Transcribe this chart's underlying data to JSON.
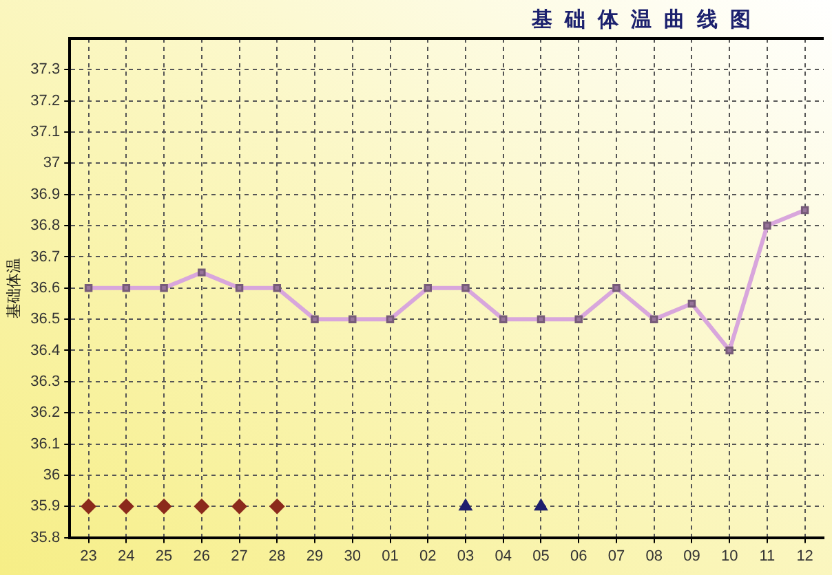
{
  "chart_data": {
    "type": "line",
    "title": "基础体温曲线图",
    "ylabel": "基础体温",
    "categories": [
      "23",
      "24",
      "25",
      "26",
      "27",
      "28",
      "29",
      "30",
      "01",
      "02",
      "03",
      "04",
      "05",
      "06",
      "07",
      "08",
      "09",
      "10",
      "11",
      "12"
    ],
    "series": [
      {
        "color": "#d8a6dc",
        "marker": "square",
        "values": [
          36.6,
          36.6,
          36.6,
          36.65,
          36.6,
          36.6,
          36.5,
          36.5,
          36.5,
          36.6,
          36.6,
          36.5,
          36.5,
          36.5,
          36.6,
          36.5,
          36.55,
          36.4,
          36.8,
          36.85
        ]
      },
      {
        "type": "scatter",
        "color": "#8b2a1c",
        "marker": "diamond",
        "values": [
          35.9,
          35.9,
          35.9,
          35.9,
          35.9,
          35.9,
          null,
          null,
          null,
          null,
          null,
          null,
          null,
          null,
          null,
          null,
          null,
          null,
          null,
          null
        ]
      },
      {
        "type": "scatter",
        "color": "#1e1e6e",
        "marker": "triangle",
        "values": [
          null,
          null,
          null,
          null,
          null,
          null,
          null,
          null,
          null,
          null,
          35.9,
          null,
          35.9,
          null,
          null,
          null,
          null,
          null,
          null,
          null
        ]
      }
    ],
    "ylim": [
      35.8,
      37.4
    ],
    "yticks": [
      35.8,
      35.9,
      36,
      36.1,
      36.2,
      36.3,
      36.4,
      36.5,
      36.6,
      36.7,
      36.8,
      36.9,
      37,
      37.1,
      37.2,
      37.3
    ],
    "grid": true,
    "legend": false
  }
}
